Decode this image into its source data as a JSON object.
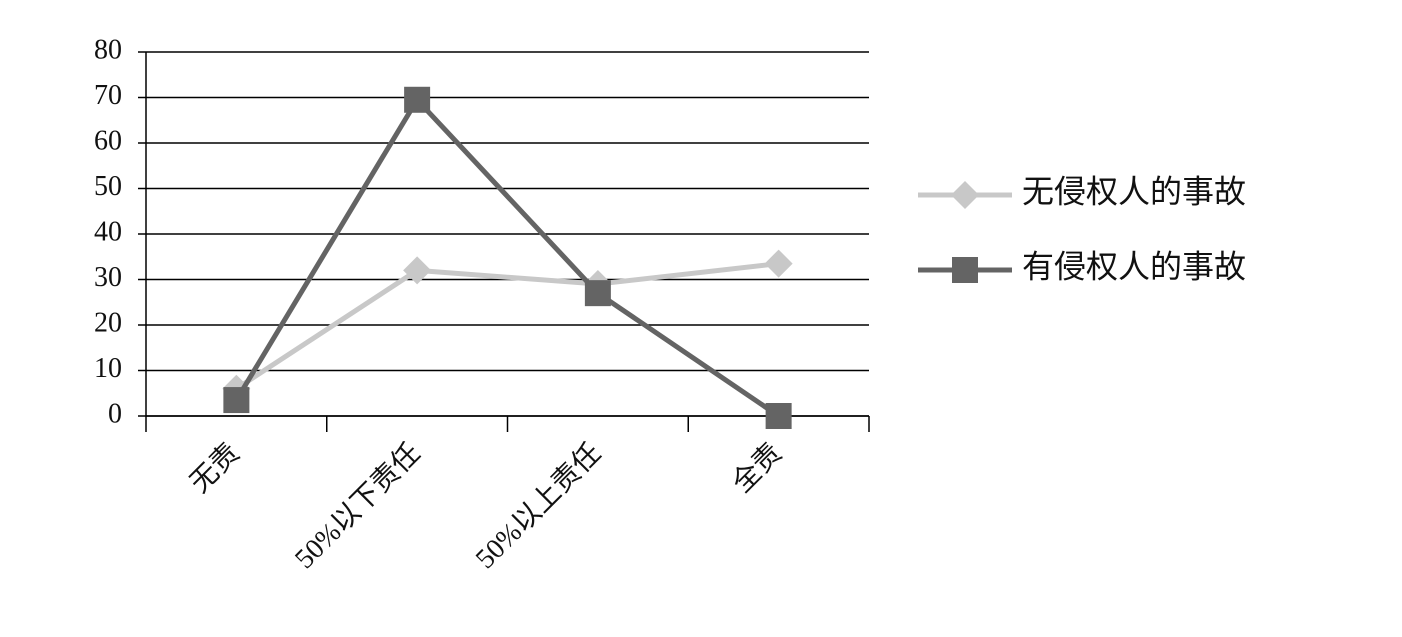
{
  "chart_data": {
    "type": "line",
    "categories": [
      "无责",
      "50%以下责任",
      "50%以上责任",
      "全责"
    ],
    "series": [
      {
        "name": "无侵权人的事故",
        "color": "#c8c8c8",
        "marker": "diamond",
        "values": [
          6,
          32,
          29,
          33.5
        ]
      },
      {
        "name": "有侵权人的事故",
        "color": "#646464",
        "marker": "square",
        "values": [
          3.5,
          69.5,
          27,
          0
        ]
      }
    ],
    "ylim": [
      0,
      80
    ],
    "yticks": [
      0,
      10,
      20,
      30,
      40,
      50,
      60,
      70,
      80
    ],
    "grid": true,
    "legend": "right"
  }
}
